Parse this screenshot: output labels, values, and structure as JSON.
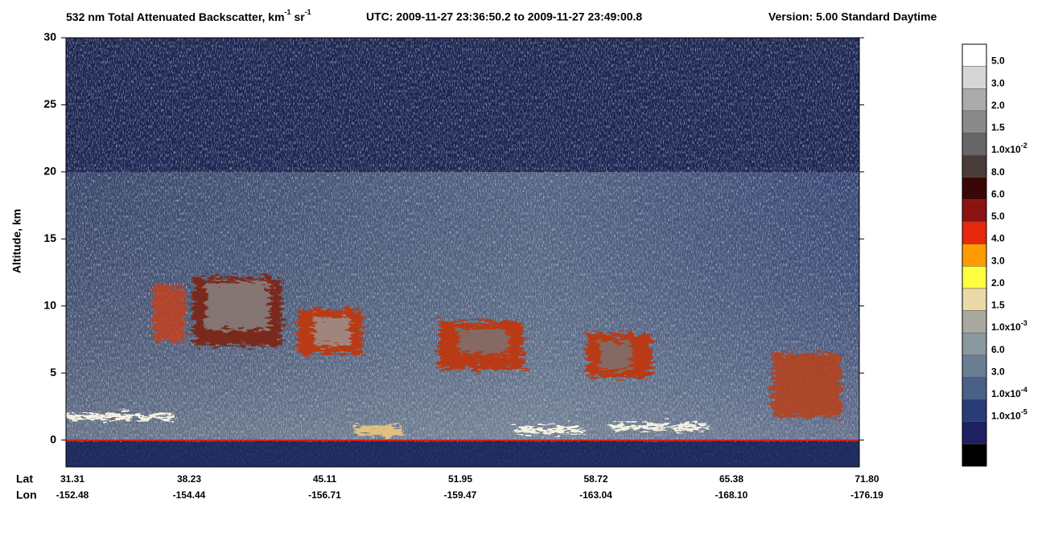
{
  "chart_data": {
    "type": "curtain",
    "title_parts": [
      "532 nm Total Attenuated Backscatter, km",
      "-1",
      " sr",
      "-1"
    ],
    "time_range": "UTC:  2009-11-27 23:36:50.2  to  2009-11-27 23:49:00.8",
    "version": "Version: 5.00  Standard  Daytime",
    "ylabel": "Altitude, km",
    "ylim": [
      -2,
      30
    ],
    "yticks": [
      0,
      5,
      10,
      15,
      20,
      25,
      30
    ],
    "x_row_labels": [
      "Lat",
      "Lon"
    ],
    "lat": [
      "31.31",
      "38.23",
      "45.11",
      "51.95",
      "58.72",
      "65.38",
      "71.80"
    ],
    "lon": [
      "-152.48",
      "-154.44",
      "-156.71",
      "-159.47",
      "-163.04",
      "-168.10",
      "-176.19"
    ],
    "colorbar": {
      "colors": [
        "#ffffff",
        "#d6d6d6",
        "#ababab",
        "#8a8a8a",
        "#666666",
        "#4a3c38",
        "#3a0606",
        "#8b1212",
        "#e8280c",
        "#ff9a00",
        "#ffff40",
        "#ecd9a8",
        "#a8aaa0",
        "#8a98a0",
        "#6a7e94",
        "#4a6088",
        "#2a3c78",
        "#1e2060",
        "#000000"
      ],
      "labels": [
        {
          "base": "5.0"
        },
        {
          "base": "3.0"
        },
        {
          "base": "2.0"
        },
        {
          "base": "1.5"
        },
        {
          "base": "1.0x10",
          "sup": "-2"
        },
        {
          "base": "8.0"
        },
        {
          "base": "6.0"
        },
        {
          "base": "5.0"
        },
        {
          "base": "4.0"
        },
        {
          "base": "3.0"
        },
        {
          "base": "2.0"
        },
        {
          "base": "1.5"
        },
        {
          "base": "1.0x10",
          "sup": "-3"
        },
        {
          "base": "6.0"
        },
        {
          "base": "3.0"
        },
        {
          "base": "1.0x10",
          "sup": "-4"
        },
        {
          "base": "1.0x10",
          "sup": "-5"
        }
      ]
    }
  }
}
